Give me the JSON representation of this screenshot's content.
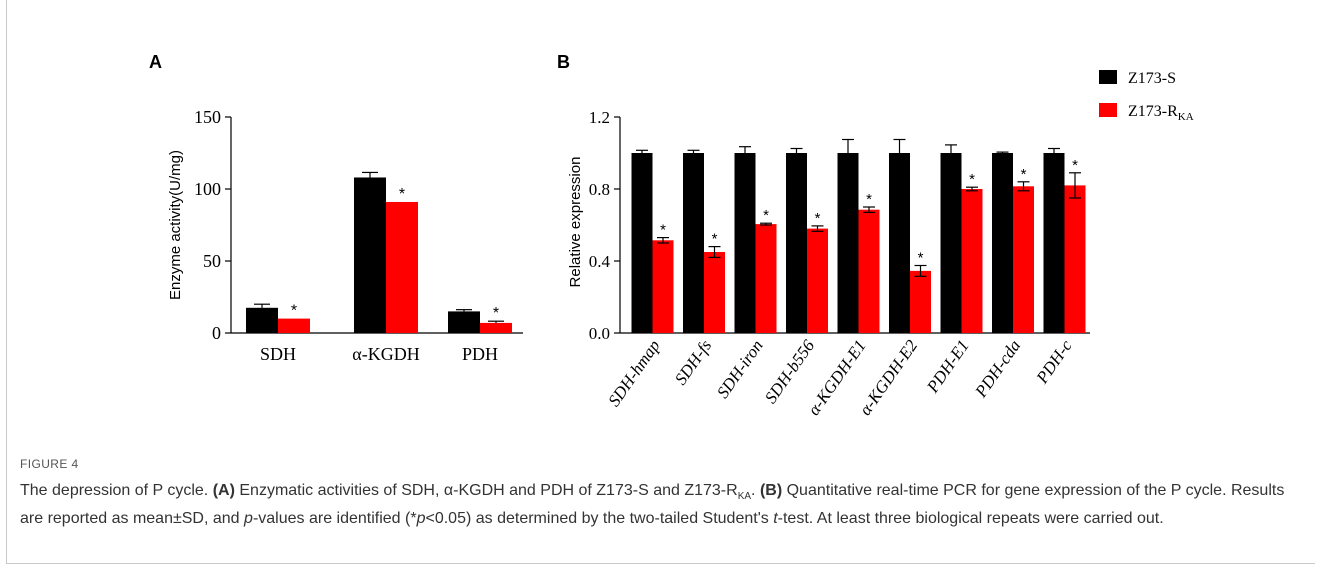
{
  "chart_data": [
    {
      "panel": "A",
      "type": "bar",
      "ylabel": "Enzyme activity(U/mg)",
      "ylim": [
        0,
        150
      ],
      "yticks": [
        "0",
        "50",
        "100",
        "150"
      ],
      "categories": [
        "SDH",
        "α-KGDH",
        "PDH"
      ],
      "series": [
        {
          "name": "Z173-S",
          "color": "#000000",
          "values": [
            17.5,
            108,
            15
          ],
          "errors": [
            2.5,
            3.5,
            1.2
          ]
        },
        {
          "name": "Z173-R_KA",
          "color": "#ff0000",
          "values": [
            10,
            91,
            7
          ],
          "errors": [
            0,
            0,
            1.2
          ]
        }
      ],
      "significance_marks": [
        {
          "category": "SDH",
          "series": "Z173-R_KA",
          "text": "*"
        },
        {
          "category": "α-KGDH",
          "series": "Z173-R_KA",
          "text": "*"
        },
        {
          "category": "PDH",
          "series": "Z173-R_KA",
          "text": "*"
        }
      ]
    },
    {
      "panel": "B",
      "type": "bar",
      "ylabel": "Relative expression",
      "ylim": [
        0,
        1.2
      ],
      "yticks": [
        "0.0",
        "0.4",
        "0.8",
        "1.2"
      ],
      "categories": [
        "SDH-hmap",
        "SDH-fs",
        "SDH-iron",
        "SDH-b556",
        "α-KGDH-E1",
        "α-KGDH-E2",
        "PDH-E1",
        "PDH-cda",
        "PDH-c"
      ],
      "series": [
        {
          "name": "Z173-S",
          "color": "#000000",
          "values": [
            1.0,
            1.0,
            1.0,
            1.0,
            1.0,
            1.0,
            1.0,
            1.0,
            1.0
          ],
          "errors": [
            0.015,
            0.015,
            0.035,
            0.025,
            0.075,
            0.075,
            0.045,
            0.005,
            0.025
          ]
        },
        {
          "name": "Z173-R_KA",
          "color": "#ff0000",
          "values": [
            0.515,
            0.45,
            0.605,
            0.58,
            0.685,
            0.345,
            0.8,
            0.815,
            0.82
          ],
          "errors": [
            0.015,
            0.03,
            0.005,
            0.015,
            0.015,
            0.03,
            0.01,
            0.025,
            0.07
          ]
        }
      ],
      "significance_marks": "* above each Z173-R_KA bar",
      "legend_position": "top-right"
    }
  ],
  "figure": {
    "panel_a_label": "A",
    "panel_b_label": "B",
    "legend": [
      {
        "name_main": "Z173-S",
        "name_sub": "",
        "color": "#000000"
      },
      {
        "name_main": "Z173-R",
        "name_sub": "KA",
        "color": "#ff0000"
      }
    ],
    "star": "*"
  },
  "caption": {
    "label": "FIGURE 4",
    "title": "The depression of P cycle.",
    "a_tag": "(A)",
    "a_text_pre": "Enzymatic activities of SDH, α-KGDH and PDH of Z173-S and Z173-R",
    "a_text_sub": "KA",
    "a_text_end": ".",
    "b_tag": "(B)",
    "b_text": "Quantitative real-time PCR for gene expression of the P cycle. Results are reported as mean±SD, and",
    "p_var": "p",
    "pvalue_text_1": "-values are identified (*",
    "pvalue_text_2": "<0.05) as determined by the two-tailed Student's",
    "t_var": "t",
    "t_text": "-test. At least three biological repeats were carried out."
  }
}
